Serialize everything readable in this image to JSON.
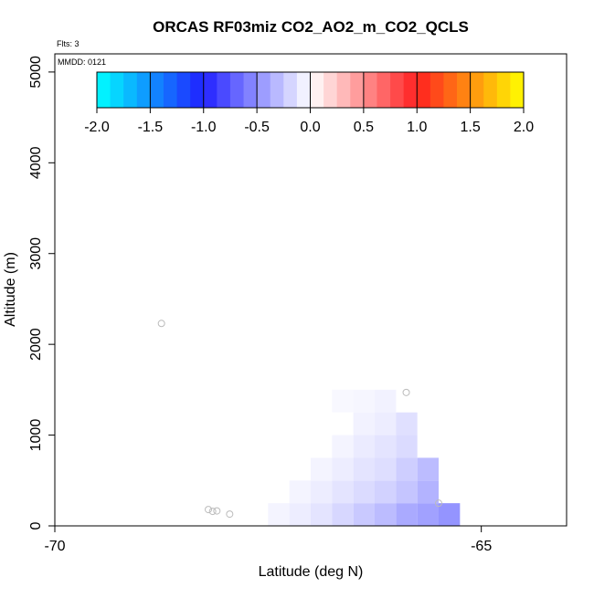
{
  "chart_data": {
    "type": "heatmap",
    "title": "ORCAS RF03miz CO2_AO2_m_CO2_QCLS",
    "flights_label": "Flts: 3",
    "date_label": "MMDD: 0121",
    "xlabel": "Latitude (deg N)",
    "ylabel": "Altitude (m)",
    "xlim": [
      -70,
      -64
    ],
    "ylim": [
      0,
      5200
    ],
    "x_ticks": [
      -70,
      -65
    ],
    "x_tick_labels": [
      "-70",
      "-65"
    ],
    "y_ticks": [
      0,
      1000,
      2000,
      3000,
      4000,
      5000
    ],
    "y_tick_labels": [
      "0",
      "1000",
      "2000",
      "3000",
      "4000",
      "5000"
    ],
    "colorbar": {
      "range": [
        -2.0,
        2.0
      ],
      "ticks": [
        -2.0,
        -1.5,
        -1.0,
        -0.5,
        0.0,
        0.5,
        1.0,
        1.5,
        2.0
      ],
      "tick_labels": [
        "-2.0",
        "-1.5",
        "-1.0",
        "-0.5",
        "0.0",
        "0.5",
        "1.0",
        "1.5",
        "2.0"
      ],
      "stops": [
        {
          "v": -2.0,
          "color": "#00ffff"
        },
        {
          "v": -1.0,
          "color": "#2020ff"
        },
        {
          "v": 0.0,
          "color": "#ffffff"
        },
        {
          "v": 1.0,
          "color": "#ff2020"
        },
        {
          "v": 2.0,
          "color": "#ffff00"
        }
      ]
    },
    "cell_size": {
      "dlat": 0.25,
      "dalt": 250
    },
    "cells": [
      {
        "lat": -67.5,
        "alt": 0,
        "value": -0.05
      },
      {
        "lat": -67.25,
        "alt": 0,
        "value": -0.08
      },
      {
        "lat": -67.0,
        "alt": 0,
        "value": -0.12
      },
      {
        "lat": -66.75,
        "alt": 0,
        "value": -0.18
      },
      {
        "lat": -66.5,
        "alt": 0,
        "value": -0.24
      },
      {
        "lat": -66.25,
        "alt": 0,
        "value": -0.3
      },
      {
        "lat": -66.0,
        "alt": 0,
        "value": -0.38
      },
      {
        "lat": -65.75,
        "alt": 0,
        "value": -0.42
      },
      {
        "lat": -65.5,
        "alt": 0,
        "value": -0.48
      },
      {
        "lat": -67.25,
        "alt": 250,
        "value": -0.05
      },
      {
        "lat": -67.0,
        "alt": 250,
        "value": -0.08
      },
      {
        "lat": -66.75,
        "alt": 250,
        "value": -0.12
      },
      {
        "lat": -66.5,
        "alt": 250,
        "value": -0.16
      },
      {
        "lat": -66.25,
        "alt": 250,
        "value": -0.2
      },
      {
        "lat": -66.0,
        "alt": 250,
        "value": -0.26
      },
      {
        "lat": -65.75,
        "alt": 250,
        "value": -0.34
      },
      {
        "lat": -67.0,
        "alt": 500,
        "value": -0.05
      },
      {
        "lat": -66.75,
        "alt": 500,
        "value": -0.08
      },
      {
        "lat": -66.5,
        "alt": 500,
        "value": -0.12
      },
      {
        "lat": -66.25,
        "alt": 500,
        "value": -0.15
      },
      {
        "lat": -66.0,
        "alt": 500,
        "value": -0.22
      },
      {
        "lat": -65.75,
        "alt": 500,
        "value": -0.3
      },
      {
        "lat": -66.75,
        "alt": 750,
        "value": -0.05
      },
      {
        "lat": -66.5,
        "alt": 750,
        "value": -0.09
      },
      {
        "lat": -66.25,
        "alt": 750,
        "value": -0.12
      },
      {
        "lat": -66.0,
        "alt": 750,
        "value": -0.16
      },
      {
        "lat": -66.75,
        "alt": 1000,
        "value": 0.0
      },
      {
        "lat": -66.5,
        "alt": 1000,
        "value": -0.06
      },
      {
        "lat": -66.25,
        "alt": 1000,
        "value": -0.08
      },
      {
        "lat": -66.0,
        "alt": 1000,
        "value": -0.14
      },
      {
        "lat": -66.75,
        "alt": 1250,
        "value": -0.03
      },
      {
        "lat": -66.5,
        "alt": 1250,
        "value": -0.04
      },
      {
        "lat": -66.25,
        "alt": 1250,
        "value": -0.06
      }
    ],
    "points": [
      {
        "lat": -68.75,
        "alt": 2230
      },
      {
        "lat": -68.2,
        "alt": 180
      },
      {
        "lat": -68.15,
        "alt": 160
      },
      {
        "lat": -68.1,
        "alt": 165
      },
      {
        "lat": -67.95,
        "alt": 130
      },
      {
        "lat": -65.88,
        "alt": 1470
      },
      {
        "lat": -65.5,
        "alt": 250
      }
    ]
  }
}
